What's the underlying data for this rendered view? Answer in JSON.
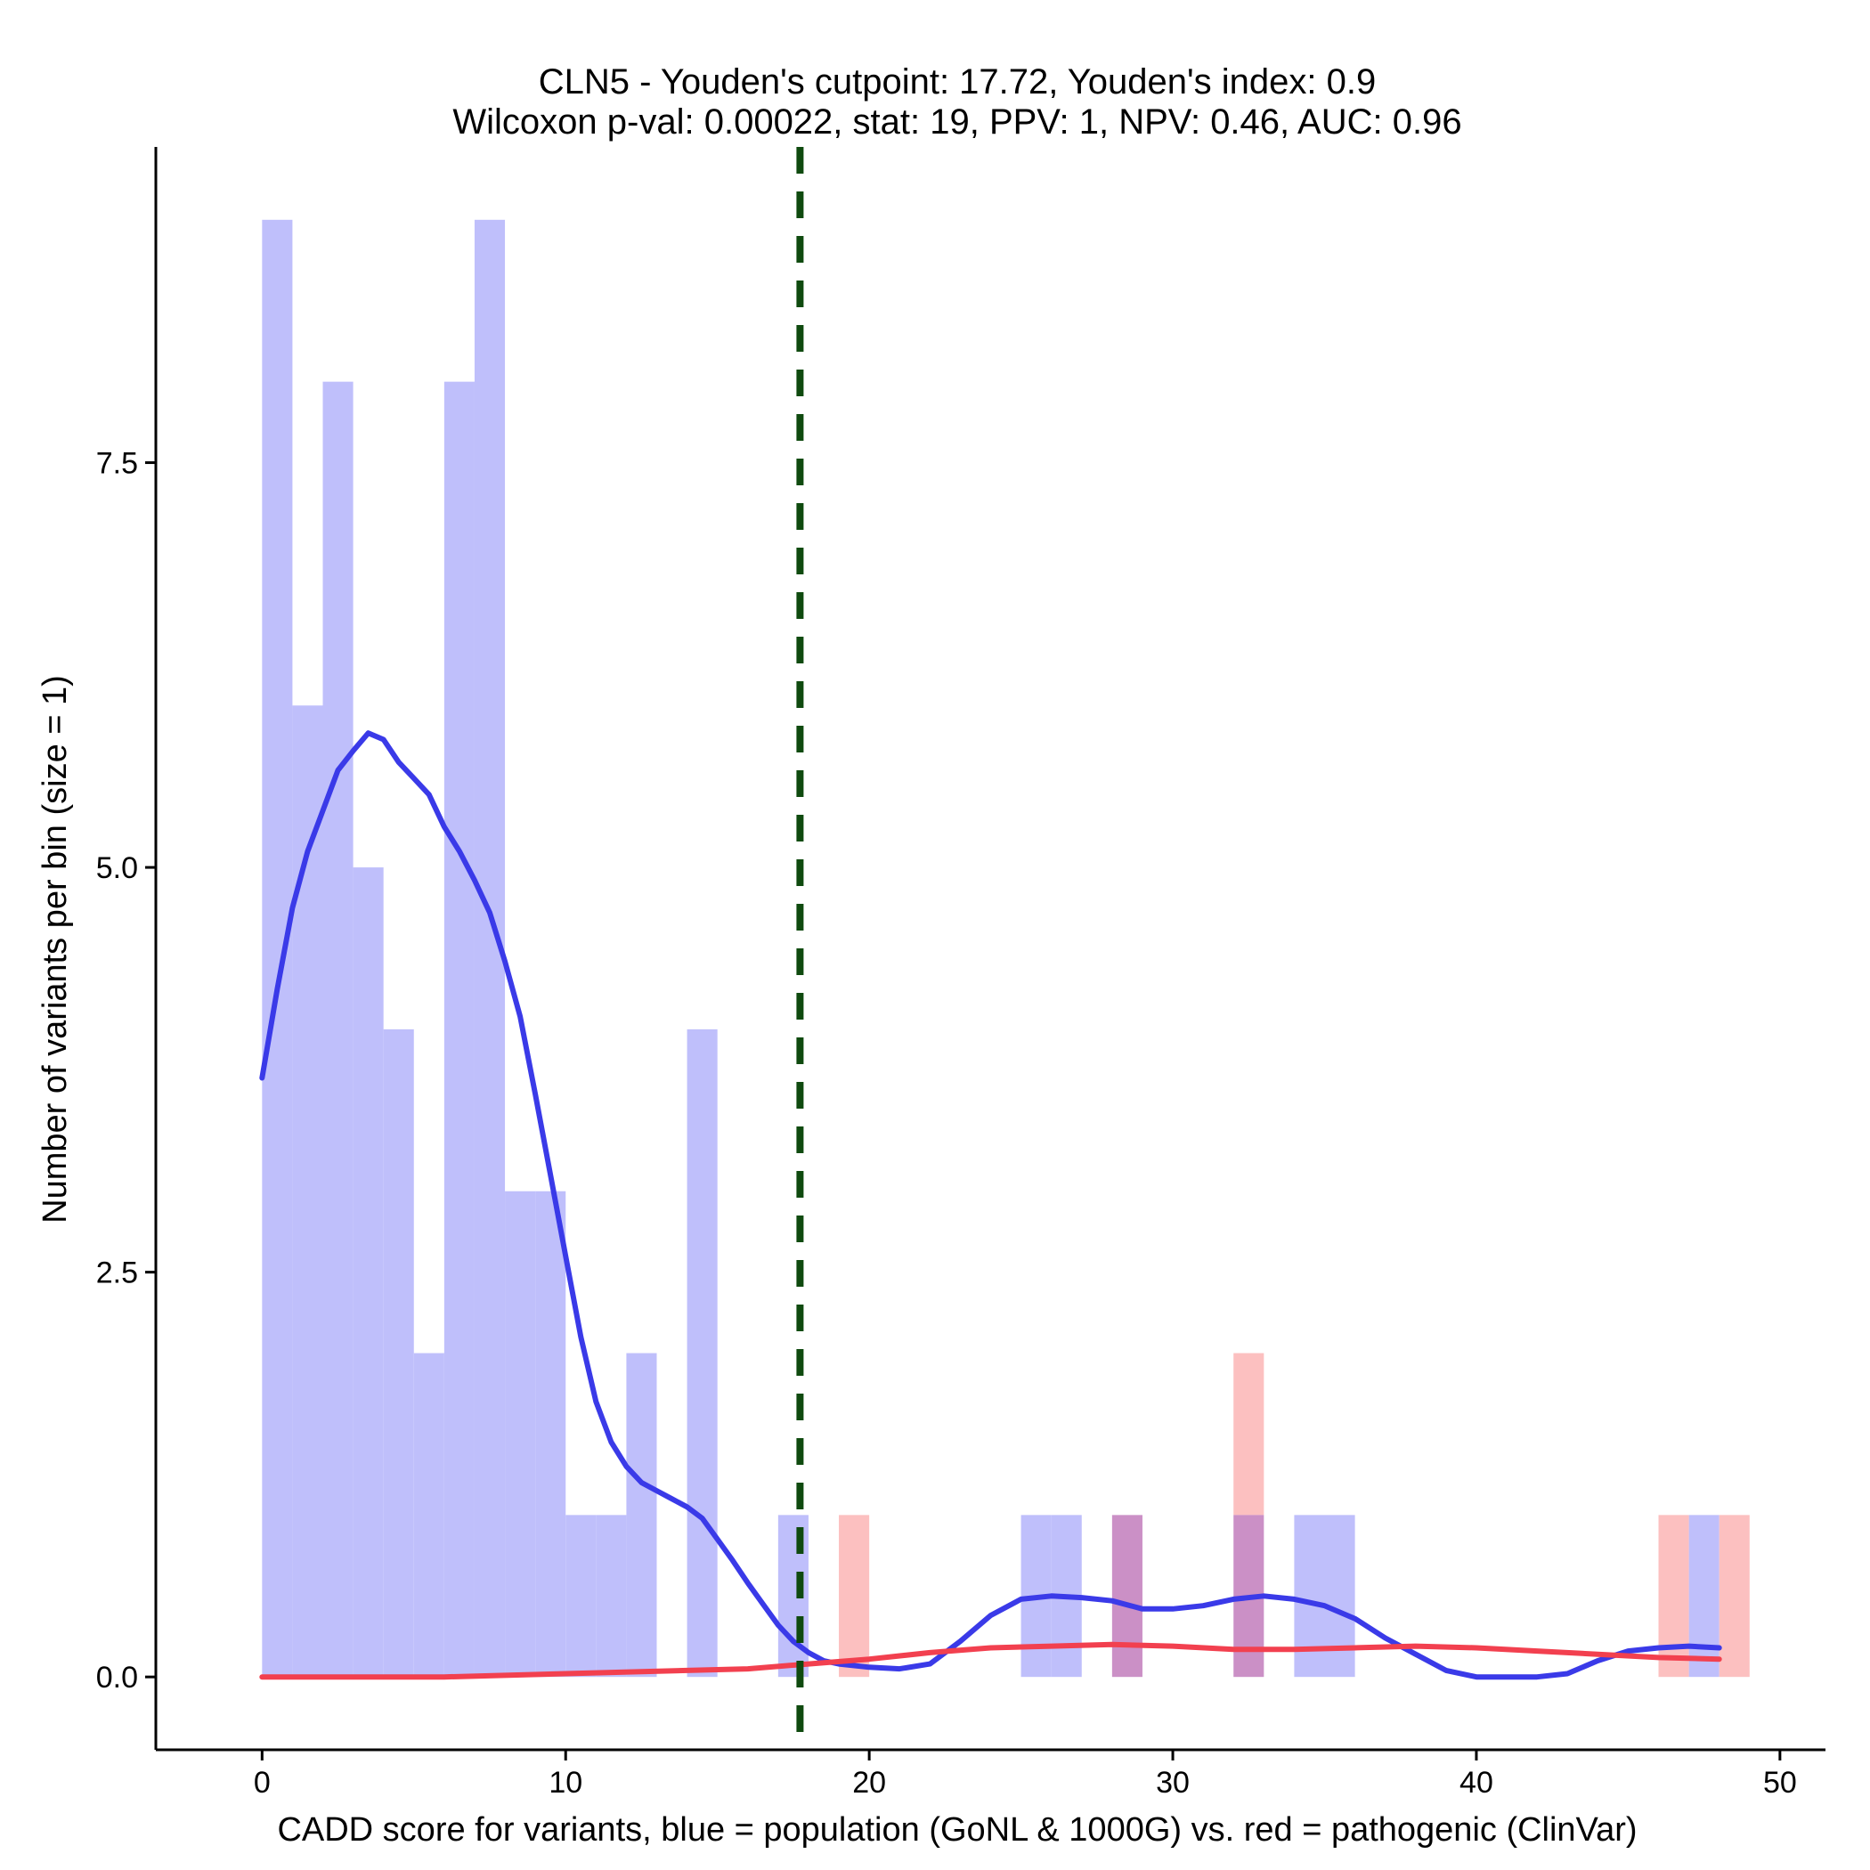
{
  "chart_data": {
    "type": "histogram",
    "title_line1": "CLN5 - Youden's cutpoint: 17.72, Youden's index: 0.9",
    "title_line2": "Wilcoxon p-val: 0.00022, stat: 19, PPV: 1, NPV: 0.46, AUC: 0.96",
    "xlabel": "CADD score for variants, blue = population (GoNL & 1000G) vs. red = pathogenic (ClinVar)",
    "ylabel": "Number of variants per bin (size = 1)",
    "xlim": [
      -3.5,
      51.5
    ],
    "ylim": [
      -0.45,
      9.45
    ],
    "x_ticks": [
      0,
      10,
      20,
      30,
      40,
      50
    ],
    "x_tick_labels": [
      "0",
      "10",
      "20",
      "30",
      "40",
      "50"
    ],
    "y_ticks": [
      0,
      2.5,
      5,
      7.5
    ],
    "y_tick_labels": [
      "0.0",
      "2.5",
      "5.0",
      "7.5"
    ],
    "bin_width": 1,
    "cutpoint": 17.72,
    "colors": {
      "population_bar": "#bfbffb",
      "pathogenic_bar": "#fcc0c0",
      "overlap_bar": "#cb90c6",
      "population_line": "#3a3ae8",
      "pathogenic_line": "#f2404f",
      "cutpoint_line": "#0f4a0f"
    },
    "series": [
      {
        "name": "population (GoNL & 1000G)",
        "bins": [
          {
            "x": 0,
            "count": 9
          },
          {
            "x": 1,
            "count": 6
          },
          {
            "x": 2,
            "count": 8
          },
          {
            "x": 3,
            "count": 5
          },
          {
            "x": 4,
            "count": 4
          },
          {
            "x": 5,
            "count": 2
          },
          {
            "x": 6,
            "count": 8
          },
          {
            "x": 7,
            "count": 9
          },
          {
            "x": 8,
            "count": 3
          },
          {
            "x": 9,
            "count": 3
          },
          {
            "x": 10,
            "count": 1
          },
          {
            "x": 11,
            "count": 1
          },
          {
            "x": 12,
            "count": 2
          },
          {
            "x": 14,
            "count": 4
          },
          {
            "x": 17,
            "count": 1
          },
          {
            "x": 25,
            "count": 1
          },
          {
            "x": 26,
            "count": 1
          },
          {
            "x": 28,
            "count": 1
          },
          {
            "x": 32,
            "count": 1
          },
          {
            "x": 34,
            "count": 1
          },
          {
            "x": 35,
            "count": 1
          },
          {
            "x": 47,
            "count": 1
          }
        ],
        "density_curve": [
          [
            0,
            3.7
          ],
          [
            0.5,
            4.25
          ],
          [
            1,
            4.75
          ],
          [
            1.5,
            5.1
          ],
          [
            2,
            5.35
          ],
          [
            2.5,
            5.6
          ],
          [
            3,
            5.72
          ],
          [
            3.5,
            5.83
          ],
          [
            4,
            5.79
          ],
          [
            4.5,
            5.65
          ],
          [
            5,
            5.55
          ],
          [
            5.5,
            5.45
          ],
          [
            6,
            5.25
          ],
          [
            6.5,
            5.1
          ],
          [
            7,
            4.92
          ],
          [
            7.5,
            4.72
          ],
          [
            8,
            4.42
          ],
          [
            8.5,
            4.08
          ],
          [
            9,
            3.6
          ],
          [
            9.5,
            3.1
          ],
          [
            10,
            2.6
          ],
          [
            10.5,
            2.1
          ],
          [
            11,
            1.7
          ],
          [
            11.5,
            1.45
          ],
          [
            12,
            1.3
          ],
          [
            12.5,
            1.2
          ],
          [
            13,
            1.15
          ],
          [
            13.5,
            1.1
          ],
          [
            14,
            1.05
          ],
          [
            14.5,
            0.98
          ],
          [
            15,
            0.85
          ],
          [
            15.5,
            0.72
          ],
          [
            16,
            0.58
          ],
          [
            16.5,
            0.45
          ],
          [
            17,
            0.32
          ],
          [
            17.5,
            0.22
          ],
          [
            18,
            0.15
          ],
          [
            18.5,
            0.1
          ],
          [
            19,
            0.08
          ],
          [
            20,
            0.06
          ],
          [
            21,
            0.05
          ],
          [
            22,
            0.08
          ],
          [
            23,
            0.22
          ],
          [
            24,
            0.38
          ],
          [
            25,
            0.48
          ],
          [
            26,
            0.5
          ],
          [
            27,
            0.49
          ],
          [
            28,
            0.47
          ],
          [
            29,
            0.42
          ],
          [
            30,
            0.42
          ],
          [
            31,
            0.44
          ],
          [
            32,
            0.48
          ],
          [
            33,
            0.5
          ],
          [
            34,
            0.48
          ],
          [
            35,
            0.44
          ],
          [
            36,
            0.36
          ],
          [
            37,
            0.24
          ],
          [
            38,
            0.14
          ],
          [
            39,
            0.04
          ],
          [
            40,
            0.0
          ],
          [
            41,
            0.0
          ],
          [
            42,
            0.0
          ],
          [
            43,
            0.02
          ],
          [
            44,
            0.1
          ],
          [
            45,
            0.16
          ],
          [
            46,
            0.18
          ],
          [
            47,
            0.19
          ],
          [
            48,
            0.18
          ]
        ]
      },
      {
        "name": "pathogenic (ClinVar)",
        "bins": [
          {
            "x": 19,
            "count": 1
          },
          {
            "x": 28,
            "count": 1
          },
          {
            "x": 32,
            "count": 2
          },
          {
            "x": 46,
            "count": 1
          },
          {
            "x": 48,
            "count": 1
          }
        ],
        "density_curve": [
          [
            0,
            0.0
          ],
          [
            6,
            0.0
          ],
          [
            10,
            0.02
          ],
          [
            14,
            0.04
          ],
          [
            16,
            0.05
          ],
          [
            18,
            0.08
          ],
          [
            20,
            0.11
          ],
          [
            22,
            0.15
          ],
          [
            24,
            0.18
          ],
          [
            26,
            0.19
          ],
          [
            28,
            0.2
          ],
          [
            30,
            0.19
          ],
          [
            32,
            0.17
          ],
          [
            34,
            0.17
          ],
          [
            36,
            0.18
          ],
          [
            38,
            0.19
          ],
          [
            40,
            0.18
          ],
          [
            42,
            0.16
          ],
          [
            44,
            0.14
          ],
          [
            46,
            0.12
          ],
          [
            48,
            0.11
          ]
        ]
      }
    ]
  }
}
